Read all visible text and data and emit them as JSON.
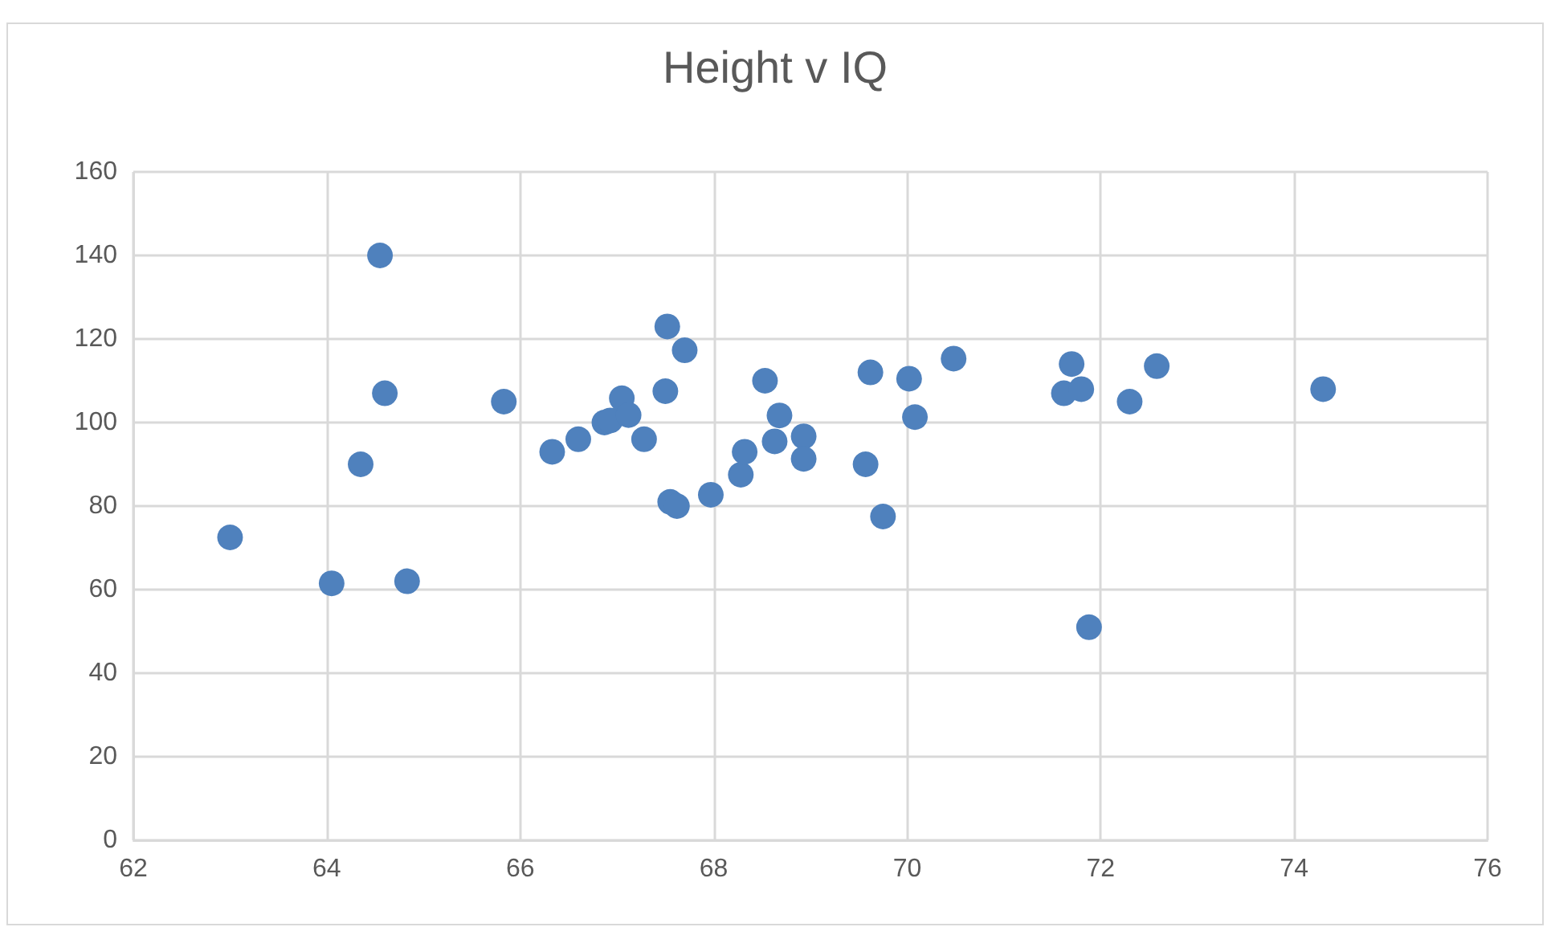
{
  "chart_data": {
    "type": "scatter",
    "title": "Height v IQ",
    "x": [
      63.0,
      64.05,
      64.35,
      64.55,
      64.6,
      64.83,
      65.83,
      66.33,
      66.6,
      66.87,
      66.93,
      67.05,
      67.12,
      67.28,
      67.5,
      67.52,
      67.55,
      67.62,
      67.7,
      67.97,
      68.28,
      68.32,
      68.53,
      68.63,
      68.68,
      68.93,
      68.93,
      69.57,
      69.62,
      69.75,
      70.02,
      70.08,
      70.48,
      71.62,
      71.7,
      71.8,
      71.88,
      72.3,
      72.58,
      74.3
    ],
    "series": [
      {
        "color": "#4f81bd",
        "values": [
          72.5,
          61.5,
          90,
          140,
          107,
          62,
          105,
          93,
          96,
          100,
          100.5,
          105.8,
          101.8,
          96,
          107.5,
          123,
          81,
          80,
          117.3,
          82.7,
          87.5,
          93,
          110,
          95.5,
          101.7,
          96.7,
          91.3,
          90,
          112,
          77.5,
          110.5,
          101.3,
          115.3,
          107,
          114,
          108,
          51,
          105,
          113.5,
          108
        ]
      }
    ],
    "xlim": [
      62,
      76
    ],
    "xticks": [
      62,
      64,
      66,
      68,
      70,
      72,
      74,
      76
    ],
    "ylim": [
      0,
      160
    ],
    "yticks": [
      0,
      20,
      40,
      60,
      80,
      100,
      120,
      140,
      160
    ],
    "grid": true,
    "marker": "circle"
  }
}
